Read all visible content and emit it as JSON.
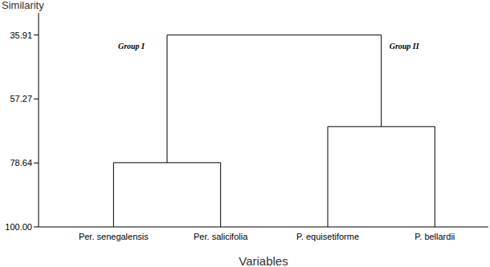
{
  "chart_data": {
    "type": "dendrogram",
    "y_label": "Similarity",
    "x_label": "Variables",
    "categories": [
      "Per. senegalensis",
      "Per. salicifolia",
      "P. equisetiforme",
      "P. bellardii"
    ],
    "ylim": [
      28.5,
      100
    ],
    "yticks": [
      35.91,
      57.27,
      78.64,
      {
        "value": 100,
        "label": "100.00"
      }
    ],
    "merges": [
      {
        "label": "Group I",
        "items": [
          0,
          1
        ],
        "similarity": 78.55
      },
      {
        "label": "Group II",
        "items": [
          2,
          3
        ],
        "similarity": 66.5
      },
      {
        "items": [
          4,
          5
        ],
        "similarity": 35.91
      }
    ],
    "color": "#000000"
  }
}
